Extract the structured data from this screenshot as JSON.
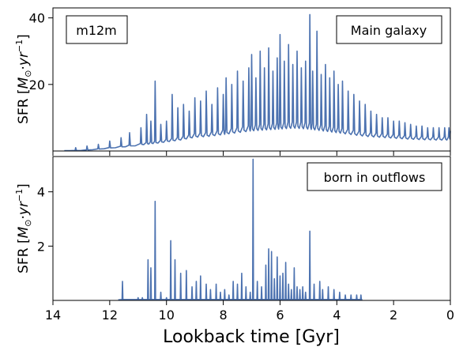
{
  "figure": {
    "series_color": "#4c72b0",
    "xlabel": "Lookback time [Gyr]"
  },
  "chart_data": [
    {
      "type": "line",
      "panel": "top",
      "label_left": "m12m",
      "label_right": "Main galaxy",
      "ylabel": "SFR [M⊙·yr⁻¹]",
      "xlim": [
        14,
        0
      ],
      "ylim": [
        0,
        43
      ],
      "yticks": [
        20,
        40
      ],
      "xticks": [
        14,
        12,
        10,
        8,
        6,
        4,
        2,
        0
      ],
      "x_reversed": true,
      "baseline": [
        [
          13.6,
          0.1
        ],
        [
          13.0,
          0.3
        ],
        [
          12.5,
          0.8
        ],
        [
          12.0,
          1.5
        ],
        [
          11.5,
          2.2
        ],
        [
          11.0,
          3.0
        ],
        [
          10.8,
          3.5
        ],
        [
          10.5,
          4.0
        ],
        [
          10.2,
          4.5
        ],
        [
          10.0,
          5.0
        ],
        [
          9.5,
          6.0
        ],
        [
          9.0,
          7.5
        ],
        [
          8.5,
          8.0
        ],
        [
          8.0,
          9.0
        ],
        [
          7.5,
          10.0
        ],
        [
          7.0,
          11.0
        ],
        [
          6.5,
          11.5
        ],
        [
          6.0,
          12.0
        ],
        [
          5.5,
          12.5
        ],
        [
          5.0,
          12.0
        ],
        [
          4.5,
          11.0
        ],
        [
          4.0,
          10.0
        ],
        [
          3.5,
          9.0
        ],
        [
          3.0,
          8.0
        ],
        [
          2.5,
          7.5
        ],
        [
          2.0,
          7.0
        ],
        [
          1.5,
          6.5
        ],
        [
          1.0,
          6.2
        ],
        [
          0.5,
          6.0
        ],
        [
          0.0,
          6.0
        ]
      ],
      "spikes": [
        [
          13.2,
          1.0
        ],
        [
          12.8,
          1.5
        ],
        [
          12.4,
          2.0
        ],
        [
          12.0,
          3.0
        ],
        [
          11.6,
          4.0
        ],
        [
          11.3,
          5.5
        ],
        [
          10.9,
          7.0
        ],
        [
          10.7,
          11.0
        ],
        [
          10.55,
          9.0
        ],
        [
          10.4,
          21.0
        ],
        [
          10.2,
          8.0
        ],
        [
          10.0,
          9.0
        ],
        [
          9.8,
          17.0
        ],
        [
          9.6,
          13.0
        ],
        [
          9.4,
          14.0
        ],
        [
          9.2,
          12.0
        ],
        [
          9.0,
          16.0
        ],
        [
          8.8,
          15.0
        ],
        [
          8.6,
          18.0
        ],
        [
          8.4,
          14.0
        ],
        [
          8.2,
          19.0
        ],
        [
          8.0,
          17.0
        ],
        [
          7.9,
          22.0
        ],
        [
          7.7,
          20.0
        ],
        [
          7.5,
          24.0
        ],
        [
          7.3,
          21.0
        ],
        [
          7.1,
          25.0
        ],
        [
          7.0,
          29.0
        ],
        [
          6.85,
          22.0
        ],
        [
          6.7,
          30.0
        ],
        [
          6.55,
          25.0
        ],
        [
          6.4,
          31.0
        ],
        [
          6.25,
          24.0
        ],
        [
          6.1,
          28.0
        ],
        [
          6.0,
          35.0
        ],
        [
          5.85,
          27.0
        ],
        [
          5.7,
          32.0
        ],
        [
          5.55,
          26.0
        ],
        [
          5.4,
          30.0
        ],
        [
          5.25,
          25.0
        ],
        [
          5.1,
          27.0
        ],
        [
          4.95,
          41.0
        ],
        [
          4.85,
          24.0
        ],
        [
          4.7,
          36.0
        ],
        [
          4.55,
          23.0
        ],
        [
          4.4,
          26.0
        ],
        [
          4.25,
          22.0
        ],
        [
          4.1,
          24.0
        ],
        [
          3.95,
          20.0
        ],
        [
          3.8,
          21.0
        ],
        [
          3.6,
          18.0
        ],
        [
          3.4,
          17.0
        ],
        [
          3.2,
          15.0
        ],
        [
          3.0,
          14.0
        ],
        [
          2.8,
          12.0
        ],
        [
          2.6,
          11.0
        ],
        [
          2.4,
          10.0
        ],
        [
          2.2,
          10.0
        ],
        [
          2.0,
          9.0
        ],
        [
          1.8,
          9.0
        ],
        [
          1.6,
          8.5
        ],
        [
          1.4,
          8.0
        ],
        [
          1.2,
          7.5
        ],
        [
          1.0,
          7.5
        ],
        [
          0.8,
          7.0
        ],
        [
          0.6,
          7.0
        ],
        [
          0.4,
          7.0
        ],
        [
          0.2,
          7.0
        ],
        [
          0.05,
          7.0
        ]
      ]
    },
    {
      "type": "line",
      "panel": "bottom",
      "label_right": "born in outflows",
      "ylabel": "SFR [M⊙·yr⁻¹]",
      "xlabel": "Lookback time [Gyr]",
      "xlim": [
        14,
        0
      ],
      "ylim": [
        0,
        5.3
      ],
      "yticks": [
        2,
        4
      ],
      "xticks": [
        14,
        12,
        10,
        8,
        6,
        4,
        2,
        0
      ],
      "x_reversed": true,
      "line_start": 11.7,
      "line_end": 3.1,
      "spikes": [
        [
          11.55,
          0.7
        ],
        [
          11.0,
          0.1
        ],
        [
          10.85,
          0.1
        ],
        [
          10.65,
          1.5
        ],
        [
          10.55,
          1.2
        ],
        [
          10.4,
          3.65
        ],
        [
          10.2,
          0.3
        ],
        [
          10.0,
          0.1
        ],
        [
          9.85,
          2.2
        ],
        [
          9.7,
          1.5
        ],
        [
          9.5,
          1.0
        ],
        [
          9.3,
          1.1
        ],
        [
          9.1,
          0.5
        ],
        [
          8.95,
          0.7
        ],
        [
          8.8,
          0.9
        ],
        [
          8.6,
          0.6
        ],
        [
          8.45,
          0.4
        ],
        [
          8.25,
          0.6
        ],
        [
          8.1,
          0.3
        ],
        [
          7.95,
          0.4
        ],
        [
          7.8,
          0.2
        ],
        [
          7.65,
          0.7
        ],
        [
          7.5,
          0.6
        ],
        [
          7.35,
          1.0
        ],
        [
          7.2,
          0.5
        ],
        [
          7.05,
          0.3
        ],
        [
          6.95,
          5.2
        ],
        [
          6.8,
          0.7
        ],
        [
          6.65,
          0.5
        ],
        [
          6.5,
          1.3
        ],
        [
          6.4,
          1.9
        ],
        [
          6.3,
          1.8
        ],
        [
          6.2,
          0.8
        ],
        [
          6.1,
          1.6
        ],
        [
          6.0,
          0.9
        ],
        [
          5.9,
          1.0
        ],
        [
          5.8,
          1.4
        ],
        [
          5.7,
          0.6
        ],
        [
          5.6,
          0.4
        ],
        [
          5.5,
          1.2
        ],
        [
          5.4,
          0.5
        ],
        [
          5.3,
          0.4
        ],
        [
          5.2,
          0.5
        ],
        [
          5.1,
          0.3
        ],
        [
          4.95,
          2.55
        ],
        [
          4.8,
          0.6
        ],
        [
          4.6,
          0.7
        ],
        [
          4.5,
          0.4
        ],
        [
          4.3,
          0.5
        ],
        [
          4.1,
          0.4
        ],
        [
          3.9,
          0.3
        ],
        [
          3.7,
          0.2
        ],
        [
          3.5,
          0.2
        ],
        [
          3.3,
          0.2
        ],
        [
          3.15,
          0.2
        ]
      ]
    }
  ]
}
